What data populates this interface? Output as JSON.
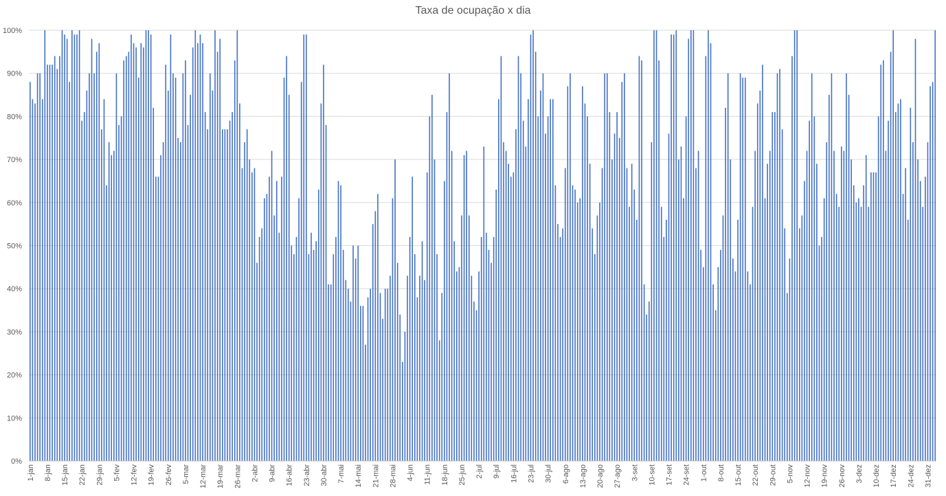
{
  "chart_data": {
    "type": "bar",
    "title": "Taxa de ocupação x dia",
    "xlabel": "",
    "ylabel": "",
    "ylim": [
      0,
      100
    ],
    "y_ticks": [
      "0%",
      "10%",
      "20%",
      "30%",
      "40%",
      "50%",
      "60%",
      "70%",
      "80%",
      "90%",
      "100%"
    ],
    "grid": true,
    "legend": "none",
    "bar_color": "#4472C4",
    "x_tick_labels": [
      "1-jan",
      "8-jan",
      "15-jan",
      "22-jan",
      "29-jan",
      "5-fev",
      "12-fev",
      "19-fev",
      "26-fev",
      "5-mar",
      "12-mar",
      "19-mar",
      "26-mar",
      "2-abr",
      "9-abr",
      "16-abr",
      "23-abr",
      "30-abr",
      "7-mai",
      "14-mai",
      "21-mai",
      "28-mai",
      "4-jun",
      "11-jun",
      "18-jun",
      "25-jun",
      "2-jul",
      "9-jul",
      "16-jul",
      "23-jul",
      "30-jul",
      "6-ago",
      "13-ago",
      "20-ago",
      "27-ago",
      "3-set",
      "10-set",
      "17-set",
      "24-set",
      "1-out",
      "8-out",
      "15-out",
      "22-out",
      "29-out",
      "5-nov",
      "12-nov",
      "19-nov",
      "26-nov",
      "3-dez",
      "10-dez",
      "17-dez",
      "24-dez",
      "31-dez"
    ],
    "values": [
      88,
      84,
      83,
      90,
      90,
      84,
      100,
      92,
      92,
      92,
      94,
      91,
      94,
      100,
      99,
      98,
      88,
      100,
      99,
      99,
      100,
      79,
      81,
      86,
      90,
      98,
      90,
      95,
      97,
      77,
      84,
      64,
      74,
      71,
      72,
      90,
      78,
      80,
      93,
      94,
      95,
      99,
      97,
      96,
      89,
      97,
      96,
      100,
      100,
      99,
      82,
      66,
      66,
      71,
      74,
      92,
      86,
      99,
      90,
      89,
      75,
      74,
      90,
      93,
      78,
      85,
      96,
      100,
      97,
      99,
      97,
      81,
      77,
      90,
      86,
      100,
      95,
      98,
      77,
      77,
      77,
      79,
      81,
      93,
      100,
      83,
      68,
      74,
      77,
      70,
      67,
      68,
      46,
      52,
      54,
      61,
      62,
      66,
      72,
      57,
      65,
      53,
      66,
      89,
      94,
      85,
      50,
      48,
      52,
      61,
      88,
      99,
      99,
      48,
      53,
      49,
      51,
      63,
      83,
      92,
      78,
      41,
      41,
      48,
      52,
      65,
      64,
      49,
      42,
      40,
      37,
      50,
      47,
      50,
      36,
      36,
      27,
      38,
      40,
      55,
      58,
      62,
      39,
      33,
      40,
      40,
      43,
      61,
      70,
      46,
      34,
      23,
      30,
      43,
      52,
      66,
      48,
      38,
      43,
      51,
      42,
      67,
      80,
      85,
      70,
      48,
      28,
      39,
      65,
      81,
      90,
      72,
      51,
      44,
      45,
      57,
      71,
      72,
      57,
      43,
      37,
      35,
      44,
      52,
      73,
      53,
      49,
      46,
      52,
      63,
      84,
      94,
      74,
      72,
      69,
      66,
      67,
      77,
      94,
      90,
      79,
      73,
      84,
      99,
      100,
      95,
      80,
      86,
      90,
      76,
      80,
      84,
      84,
      64,
      55,
      52,
      54,
      68,
      87,
      90,
      64,
      63,
      60,
      61,
      87,
      83,
      80,
      69,
      54,
      48,
      57,
      60,
      68,
      90,
      90,
      81,
      70,
      76,
      81,
      75,
      88,
      90,
      68,
      59,
      69,
      63,
      56,
      94,
      93,
      41,
      34,
      37,
      74,
      100,
      100,
      93,
      59,
      52,
      56,
      76,
      99,
      99,
      100,
      70,
      73,
      61,
      80,
      98,
      100,
      100,
      68,
      72,
      49,
      45,
      94,
      100,
      97,
      41,
      35,
      45,
      49,
      57,
      82,
      90,
      70,
      47,
      44,
      56,
      90,
      89,
      89,
      44,
      41,
      59,
      72,
      83,
      86,
      92,
      61,
      69,
      72,
      81,
      81,
      90,
      91,
      77,
      54,
      39,
      47,
      94,
      100,
      100,
      54,
      57,
      65,
      72,
      79,
      90,
      80,
      69,
      50,
      52,
      61,
      74,
      85,
      90,
      72,
      62,
      59,
      73,
      72,
      90,
      85,
      70,
      64,
      60,
      61,
      59,
      64,
      71,
      59,
      67,
      67,
      67,
      80,
      92,
      93,
      72,
      79,
      95,
      100,
      81,
      83,
      84,
      62,
      68,
      56,
      82,
      74,
      98,
      70,
      65,
      59,
      66,
      74,
      87,
      88,
      100
    ]
  }
}
